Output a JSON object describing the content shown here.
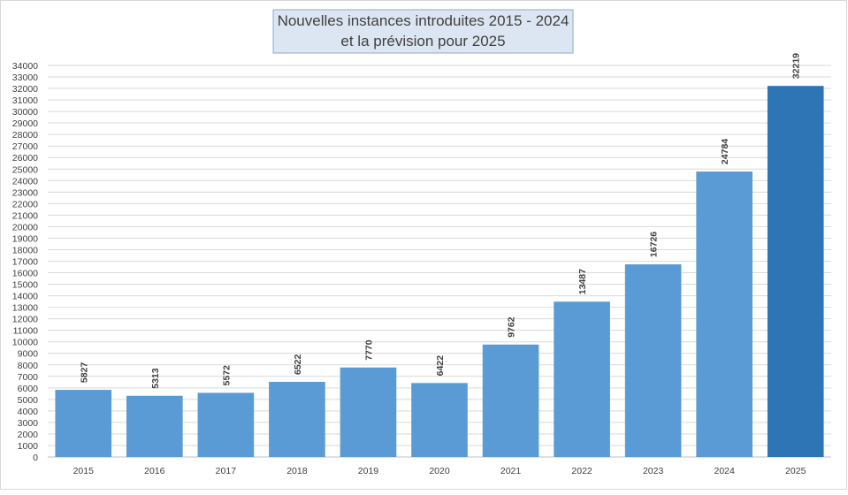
{
  "chart_data": {
    "type": "bar",
    "title_line1": "Nouvelles instances introduites 2015 - 2024",
    "title_line2": "et la prévision pour 2025",
    "categories": [
      "2015",
      "2016",
      "2017",
      "2018",
      "2019",
      "2020",
      "2021",
      "2022",
      "2023",
      "2024",
      "2025"
    ],
    "values": [
      5827,
      5313,
      5572,
      6522,
      7770,
      6422,
      9762,
      13487,
      16726,
      24784,
      32219
    ],
    "ylim": [
      0,
      34000
    ],
    "ytick_step": 1000,
    "grid": true,
    "legend": "none",
    "colors": {
      "bar": "#5b9bd5",
      "forecast_bar": "#2e75b6",
      "title_box_fill": "#dce6f2",
      "title_box_border": "#8ea9c8",
      "gridline": "#d9d9d9",
      "text": "#404040"
    },
    "forecast_category": "2025"
  }
}
